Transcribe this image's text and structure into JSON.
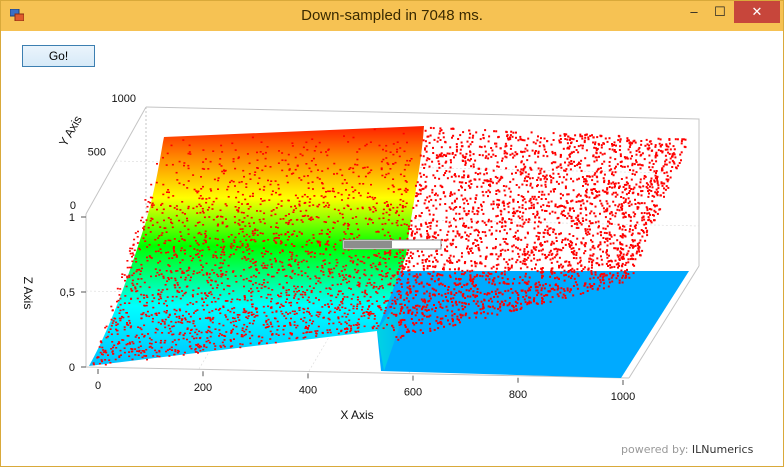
{
  "window": {
    "title": "Down-sampled in 7048 ms.",
    "controls": {
      "minimize": "–",
      "maximize": "☐",
      "close": "✕"
    }
  },
  "toolbar": {
    "go_label": "Go!"
  },
  "progress": {
    "value": 0.5
  },
  "footer": {
    "powered_by": "powered by:",
    "brand": "ILNumerics"
  },
  "colors": {
    "point_color": "#ff0000",
    "floor_color": "#00aaff",
    "colormap": [
      "#00c0ff",
      "#00ffff",
      "#00ff00",
      "#ffff00",
      "#ff8000",
      "#ff2000"
    ]
  },
  "chart_data": {
    "type": "scatter",
    "xlabel": "X Axis",
    "ylabel": "Y Axis",
    "zlabel": "Z Axis",
    "xlim": [
      0,
      1000
    ],
    "ylim": [
      0,
      1000
    ],
    "zlim": [
      0,
      1
    ],
    "x_ticks": [
      "0",
      "200",
      "400",
      "600",
      "800",
      "1000"
    ],
    "y_ticks": [
      "0",
      "500",
      "1000"
    ],
    "z_ticks": [
      "0",
      "0,5",
      "1"
    ],
    "grid": true
  }
}
